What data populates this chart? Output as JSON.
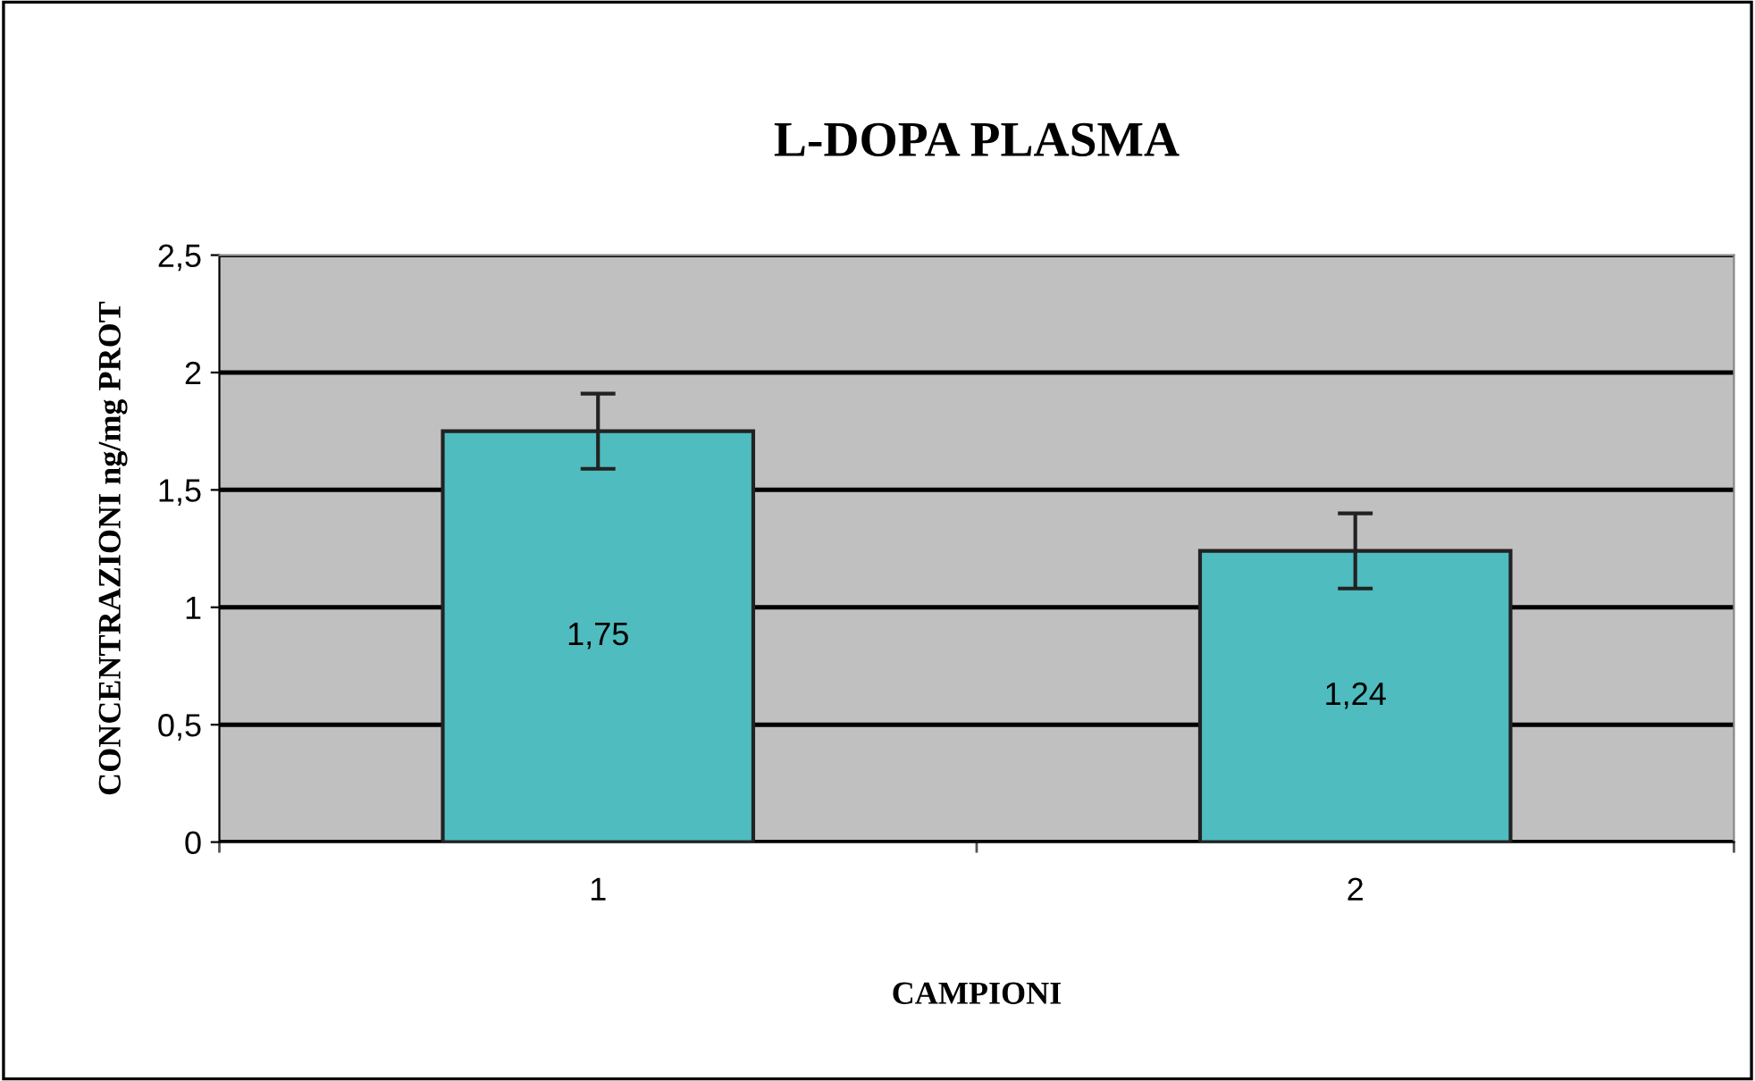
{
  "chart_data": {
    "type": "bar",
    "title": "L-DOPA PLASMA",
    "xlabel": "CAMPIONI",
    "ylabel": "CONCENTRAZIONI ng/mg PROT",
    "categories": [
      "1",
      "2"
    ],
    "values": [
      1.75,
      1.24
    ],
    "errors": [
      0.16,
      0.16
    ],
    "value_labels": [
      "1,75",
      "1,24"
    ],
    "color": "#4fbcbf",
    "ylim": [
      0,
      2.5
    ],
    "yticks": [
      {
        "value": 0,
        "label": "0"
      },
      {
        "value": 0.5,
        "label": "0,5"
      },
      {
        "value": 1,
        "label": "1"
      },
      {
        "value": 1.5,
        "label": "1,5"
      },
      {
        "value": 2,
        "label": "2"
      },
      {
        "value": 2.5,
        "label": "2,5"
      }
    ],
    "grid": "y"
  }
}
